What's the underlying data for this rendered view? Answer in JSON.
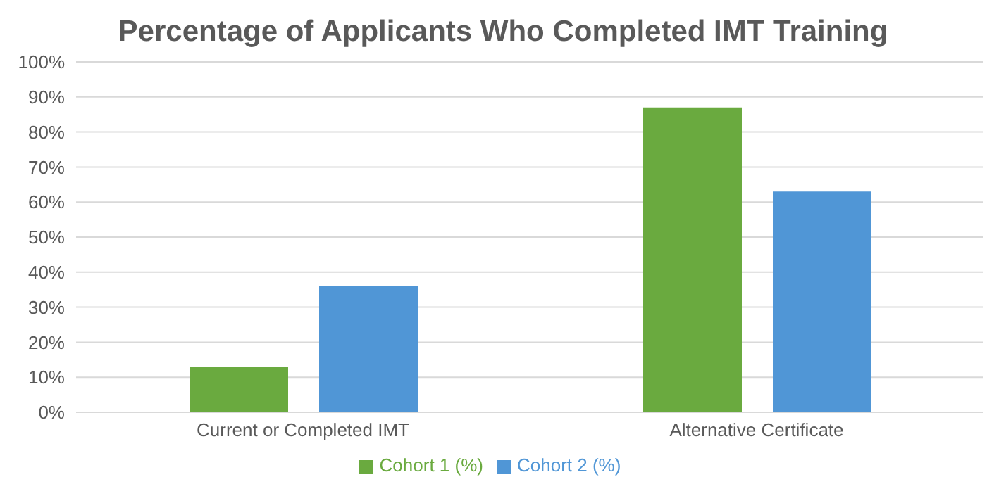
{
  "chart_data": {
    "type": "bar",
    "title": "Percentage of Applicants Who Completed IMT Training",
    "categories": [
      "Current or Completed IMT",
      "Alternative Certificate"
    ],
    "series": [
      {
        "name": "Cohort 1 (%)",
        "color": "#6aaa3f",
        "values": [
          13,
          87
        ]
      },
      {
        "name": "Cohort 2 (%)",
        "color": "#5096d6",
        "values": [
          36,
          63
        ]
      }
    ],
    "ylim": [
      0,
      100
    ],
    "yticks": [
      {
        "value": 0,
        "label": "0%"
      },
      {
        "value": 10,
        "label": "10%"
      },
      {
        "value": 20,
        "label": "20%"
      },
      {
        "value": 30,
        "label": "30%"
      },
      {
        "value": 40,
        "label": "40%"
      },
      {
        "value": 50,
        "label": "50%"
      },
      {
        "value": 60,
        "label": "60%"
      },
      {
        "value": 70,
        "label": "70%"
      },
      {
        "value": 80,
        "label": "80%"
      },
      {
        "value": 90,
        "label": "90%"
      },
      {
        "value": 100,
        "label": "100%"
      }
    ],
    "grid": "y",
    "legend": "bottom"
  }
}
